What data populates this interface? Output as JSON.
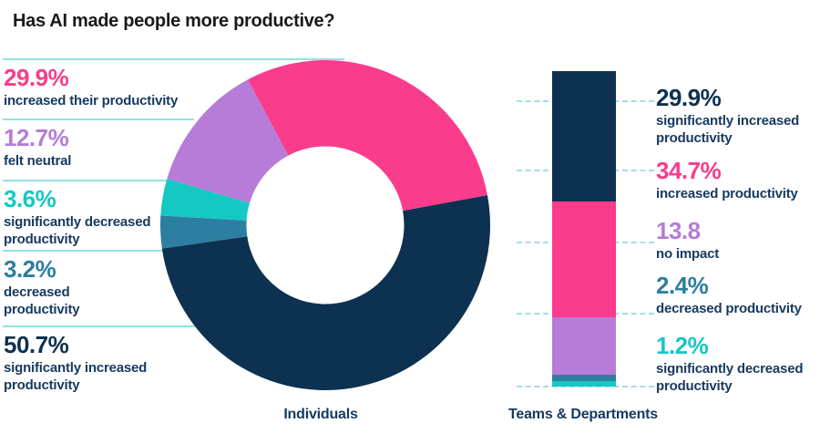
{
  "title": "Has AI made people more productive?",
  "colors": {
    "pink": "#fa3c8c",
    "navy": "#0d3150",
    "purple": "#b67cd8",
    "cyan": "#14c8c3",
    "teal": "#2c7fa0",
    "rule": "#93e2e2",
    "dash": "#a4dee8",
    "body_text": "#16395f",
    "title_text": "#1a1a1c"
  },
  "donut_section": {
    "caption": "Individuals",
    "labels": [
      {
        "pct": "29.9%",
        "desc": "increased their productivity",
        "color_key": "pink"
      },
      {
        "pct": "12.7%",
        "desc": "felt neutral",
        "color_key": "purple"
      },
      {
        "pct": "3.6%",
        "desc": "significantly decreased\nproductivity",
        "color_key": "cyan"
      },
      {
        "pct": "3.2%",
        "desc": "decreased\nproductivity",
        "color_key": "teal"
      },
      {
        "pct": "50.7%",
        "desc": "significantly increased\nproductivity",
        "color_key": "navy"
      }
    ]
  },
  "bar_section": {
    "caption": "Teams & Departments",
    "labels": [
      {
        "pct": "29.9%",
        "desc": "significantly increased\nproductivity",
        "color_key": "navy"
      },
      {
        "pct": "34.7%",
        "desc": "increased productivity",
        "color_key": "pink"
      },
      {
        "pct": "13.8",
        "desc": "no impact",
        "color_key": "purple"
      },
      {
        "pct": "2.4%",
        "desc": "decreased productivity",
        "color_key": "teal"
      },
      {
        "pct": "1.2%",
        "desc": "significantly decreased\nproductivity",
        "color_key": "cyan"
      }
    ]
  },
  "chart_data": [
    {
      "type": "pie",
      "variant": "donut",
      "title": "Individuals",
      "start_angle_deg": -28,
      "clockwise": true,
      "inner_radius_frac": 0.478,
      "slices": [
        {
          "label": "increased their productivity",
          "value": 29.9,
          "color": "#fa3c8c"
        },
        {
          "label": "significantly increased productivity",
          "value": 50.7,
          "color": "#0d3150"
        },
        {
          "label": "decreased productivity",
          "value": 3.2,
          "color": "#2c7fa0"
        },
        {
          "label": "significantly decreased productivity",
          "value": 3.6,
          "color": "#14c8c3"
        },
        {
          "label": "felt neutral",
          "value": 12.7,
          "color": "#b67cd8"
        }
      ]
    },
    {
      "type": "bar",
      "variant": "stacked-vertical",
      "title": "Teams & Departments",
      "order": "top-to-bottom",
      "segments": [
        {
          "label": "significantly increased productivity",
          "value": 29.9,
          "color": "#0d3150",
          "height_frac": 0.414
        },
        {
          "label": "increased productivity",
          "value": 34.7,
          "color": "#fa3c8c",
          "height_frac": 0.365
        },
        {
          "label": "no impact",
          "value": 13.8,
          "color": "#b67cd8",
          "height_frac": 0.184
        },
        {
          "label": "decreased productivity",
          "value": 2.4,
          "color": "#2c7fa0",
          "height_frac": 0.02
        },
        {
          "label": "significantly decreased productivity",
          "value": 1.2,
          "color": "#14c8c3",
          "height_frac": 0.017
        }
      ]
    }
  ]
}
